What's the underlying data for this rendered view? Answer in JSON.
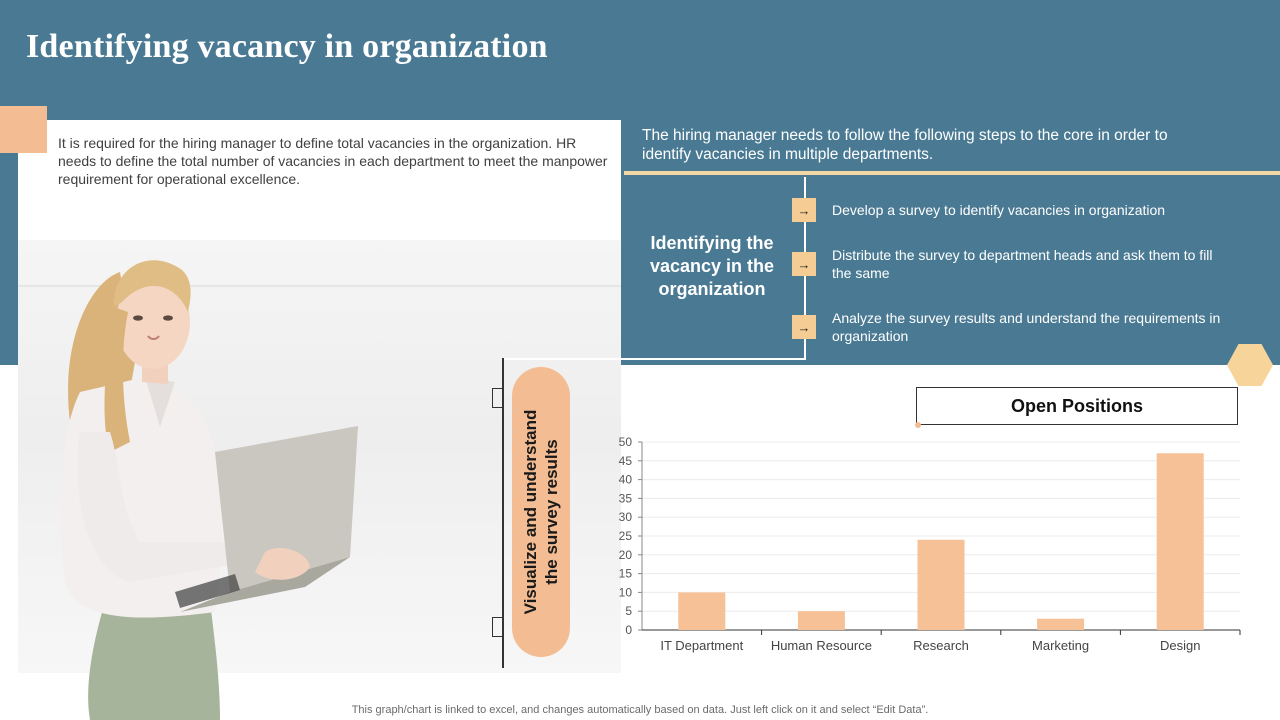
{
  "title": "Identifying vacancy in organization",
  "intro_text": "It is required for the hiring manager to define total vacancies in the organization. HR needs to define the total number of  vacancies in each department to meet the manpower requirement for operational excellence.",
  "steps_intro": "The hiring manager needs to follow the following steps to the core in order to identify vacancies in multiple departments.",
  "center_heading": "Identifying the vacancy in the organization",
  "steps": [
    {
      "icon": "arrow-right-icon",
      "text": "Develop a survey to identify vacancies in organization"
    },
    {
      "icon": "arrow-right-icon",
      "text": "Distribute the survey to  department heads and ask them to fill the same"
    },
    {
      "icon": "arrow-right-icon",
      "text": "Analyze the survey results and understand the requirements in organization"
    }
  ],
  "side_label": "Visualize and understand the survey results",
  "footer_note": "This graph/chart is linked to excel,  and changes automatically based on data. Just left click on it and select “Edit Data”.",
  "colors": {
    "band": "#4a7a93",
    "accent_peach": "#f4bc92",
    "accent_gold": "#f2d8a6",
    "bar": "#f6c197"
  },
  "chart_data": {
    "type": "bar",
    "title": "Open Positions",
    "categories": [
      "IT Department",
      "Human Resource",
      "Research",
      "Marketing",
      "Design"
    ],
    "values": [
      10,
      5,
      24,
      3,
      47
    ],
    "ylim": [
      0,
      50
    ],
    "yticks": [
      0,
      5,
      10,
      15,
      20,
      25,
      30,
      35,
      40,
      45,
      50
    ],
    "grid": true,
    "xlabel": "",
    "ylabel": ""
  }
}
